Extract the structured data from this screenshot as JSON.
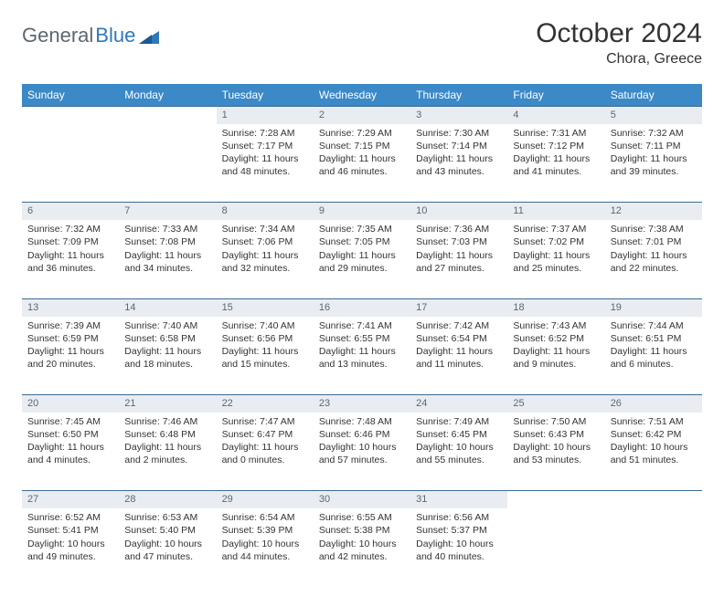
{
  "logo": {
    "text1": "General",
    "text2": "Blue"
  },
  "title": "October 2024",
  "location": "Chora, Greece",
  "colors": {
    "header_bg": "#3b89c7",
    "header_text": "#ffffff",
    "daynum_bg": "#e9edf1",
    "daynum_text": "#5d6770",
    "rule": "#3b6c94",
    "body_text": "#333333",
    "logo_gray": "#5d6770",
    "logo_blue": "#2f79b8"
  },
  "day_headers": [
    "Sunday",
    "Monday",
    "Tuesday",
    "Wednesday",
    "Thursday",
    "Friday",
    "Saturday"
  ],
  "weeks": [
    [
      {
        "n": "",
        "l1": "",
        "l2": "",
        "l3": "",
        "l4": ""
      },
      {
        "n": "",
        "l1": "",
        "l2": "",
        "l3": "",
        "l4": ""
      },
      {
        "n": "1",
        "l1": "Sunrise: 7:28 AM",
        "l2": "Sunset: 7:17 PM",
        "l3": "Daylight: 11 hours",
        "l4": "and 48 minutes."
      },
      {
        "n": "2",
        "l1": "Sunrise: 7:29 AM",
        "l2": "Sunset: 7:15 PM",
        "l3": "Daylight: 11 hours",
        "l4": "and 46 minutes."
      },
      {
        "n": "3",
        "l1": "Sunrise: 7:30 AM",
        "l2": "Sunset: 7:14 PM",
        "l3": "Daylight: 11 hours",
        "l4": "and 43 minutes."
      },
      {
        "n": "4",
        "l1": "Sunrise: 7:31 AM",
        "l2": "Sunset: 7:12 PM",
        "l3": "Daylight: 11 hours",
        "l4": "and 41 minutes."
      },
      {
        "n": "5",
        "l1": "Sunrise: 7:32 AM",
        "l2": "Sunset: 7:11 PM",
        "l3": "Daylight: 11 hours",
        "l4": "and 39 minutes."
      }
    ],
    [
      {
        "n": "6",
        "l1": "Sunrise: 7:32 AM",
        "l2": "Sunset: 7:09 PM",
        "l3": "Daylight: 11 hours",
        "l4": "and 36 minutes."
      },
      {
        "n": "7",
        "l1": "Sunrise: 7:33 AM",
        "l2": "Sunset: 7:08 PM",
        "l3": "Daylight: 11 hours",
        "l4": "and 34 minutes."
      },
      {
        "n": "8",
        "l1": "Sunrise: 7:34 AM",
        "l2": "Sunset: 7:06 PM",
        "l3": "Daylight: 11 hours",
        "l4": "and 32 minutes."
      },
      {
        "n": "9",
        "l1": "Sunrise: 7:35 AM",
        "l2": "Sunset: 7:05 PM",
        "l3": "Daylight: 11 hours",
        "l4": "and 29 minutes."
      },
      {
        "n": "10",
        "l1": "Sunrise: 7:36 AM",
        "l2": "Sunset: 7:03 PM",
        "l3": "Daylight: 11 hours",
        "l4": "and 27 minutes."
      },
      {
        "n": "11",
        "l1": "Sunrise: 7:37 AM",
        "l2": "Sunset: 7:02 PM",
        "l3": "Daylight: 11 hours",
        "l4": "and 25 minutes."
      },
      {
        "n": "12",
        "l1": "Sunrise: 7:38 AM",
        "l2": "Sunset: 7:01 PM",
        "l3": "Daylight: 11 hours",
        "l4": "and 22 minutes."
      }
    ],
    [
      {
        "n": "13",
        "l1": "Sunrise: 7:39 AM",
        "l2": "Sunset: 6:59 PM",
        "l3": "Daylight: 11 hours",
        "l4": "and 20 minutes."
      },
      {
        "n": "14",
        "l1": "Sunrise: 7:40 AM",
        "l2": "Sunset: 6:58 PM",
        "l3": "Daylight: 11 hours",
        "l4": "and 18 minutes."
      },
      {
        "n": "15",
        "l1": "Sunrise: 7:40 AM",
        "l2": "Sunset: 6:56 PM",
        "l3": "Daylight: 11 hours",
        "l4": "and 15 minutes."
      },
      {
        "n": "16",
        "l1": "Sunrise: 7:41 AM",
        "l2": "Sunset: 6:55 PM",
        "l3": "Daylight: 11 hours",
        "l4": "and 13 minutes."
      },
      {
        "n": "17",
        "l1": "Sunrise: 7:42 AM",
        "l2": "Sunset: 6:54 PM",
        "l3": "Daylight: 11 hours",
        "l4": "and 11 minutes."
      },
      {
        "n": "18",
        "l1": "Sunrise: 7:43 AM",
        "l2": "Sunset: 6:52 PM",
        "l3": "Daylight: 11 hours",
        "l4": "and 9 minutes."
      },
      {
        "n": "19",
        "l1": "Sunrise: 7:44 AM",
        "l2": "Sunset: 6:51 PM",
        "l3": "Daylight: 11 hours",
        "l4": "and 6 minutes."
      }
    ],
    [
      {
        "n": "20",
        "l1": "Sunrise: 7:45 AM",
        "l2": "Sunset: 6:50 PM",
        "l3": "Daylight: 11 hours",
        "l4": "and 4 minutes."
      },
      {
        "n": "21",
        "l1": "Sunrise: 7:46 AM",
        "l2": "Sunset: 6:48 PM",
        "l3": "Daylight: 11 hours",
        "l4": "and 2 minutes."
      },
      {
        "n": "22",
        "l1": "Sunrise: 7:47 AM",
        "l2": "Sunset: 6:47 PM",
        "l3": "Daylight: 11 hours",
        "l4": "and 0 minutes."
      },
      {
        "n": "23",
        "l1": "Sunrise: 7:48 AM",
        "l2": "Sunset: 6:46 PM",
        "l3": "Daylight: 10 hours",
        "l4": "and 57 minutes."
      },
      {
        "n": "24",
        "l1": "Sunrise: 7:49 AM",
        "l2": "Sunset: 6:45 PM",
        "l3": "Daylight: 10 hours",
        "l4": "and 55 minutes."
      },
      {
        "n": "25",
        "l1": "Sunrise: 7:50 AM",
        "l2": "Sunset: 6:43 PM",
        "l3": "Daylight: 10 hours",
        "l4": "and 53 minutes."
      },
      {
        "n": "26",
        "l1": "Sunrise: 7:51 AM",
        "l2": "Sunset: 6:42 PM",
        "l3": "Daylight: 10 hours",
        "l4": "and 51 minutes."
      }
    ],
    [
      {
        "n": "27",
        "l1": "Sunrise: 6:52 AM",
        "l2": "Sunset: 5:41 PM",
        "l3": "Daylight: 10 hours",
        "l4": "and 49 minutes."
      },
      {
        "n": "28",
        "l1": "Sunrise: 6:53 AM",
        "l2": "Sunset: 5:40 PM",
        "l3": "Daylight: 10 hours",
        "l4": "and 47 minutes."
      },
      {
        "n": "29",
        "l1": "Sunrise: 6:54 AM",
        "l2": "Sunset: 5:39 PM",
        "l3": "Daylight: 10 hours",
        "l4": "and 44 minutes."
      },
      {
        "n": "30",
        "l1": "Sunrise: 6:55 AM",
        "l2": "Sunset: 5:38 PM",
        "l3": "Daylight: 10 hours",
        "l4": "and 42 minutes."
      },
      {
        "n": "31",
        "l1": "Sunrise: 6:56 AM",
        "l2": "Sunset: 5:37 PM",
        "l3": "Daylight: 10 hours",
        "l4": "and 40 minutes."
      },
      {
        "n": "",
        "l1": "",
        "l2": "",
        "l3": "",
        "l4": ""
      },
      {
        "n": "",
        "l1": "",
        "l2": "",
        "l3": "",
        "l4": ""
      }
    ]
  ]
}
